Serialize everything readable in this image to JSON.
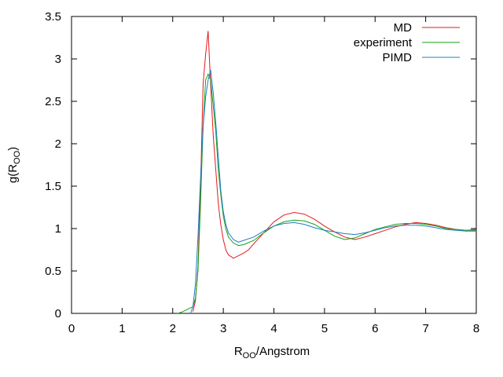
{
  "chart_data": {
    "type": "line",
    "title": "",
    "xlabel_main": "R",
    "xlabel_sub": "OO",
    "xlabel_rest": "/Angstrom",
    "ylabel_main": "g(R",
    "ylabel_sub": "OO",
    "ylabel_rest": ")",
    "xlim": [
      0,
      8
    ],
    "ylim": [
      0,
      3.5
    ],
    "xticks": [
      "0",
      "1",
      "2",
      "3",
      "4",
      "5",
      "6",
      "7",
      "8"
    ],
    "yticks": [
      "0",
      "0.5",
      "1",
      "1.5",
      "2",
      "2.5",
      "3",
      "3.5"
    ],
    "grid": false,
    "legend_position": "top-right",
    "series": [
      {
        "name": "MD",
        "color": "#e41a1c",
        "x": [
          2.4,
          2.45,
          2.5,
          2.55,
          2.6,
          2.65,
          2.7,
          2.75,
          2.8,
          2.85,
          2.9,
          2.95,
          3.0,
          3.05,
          3.1,
          3.15,
          3.2,
          3.3,
          3.4,
          3.5,
          3.6,
          3.8,
          4.0,
          4.2,
          4.4,
          4.6,
          4.8,
          5.0,
          5.2,
          5.4,
          5.6,
          5.8,
          6.0,
          6.2,
          6.4,
          6.6,
          6.8,
          7.0,
          7.2,
          7.4,
          7.6,
          7.8,
          8.0
        ],
        "y": [
          0.02,
          0.15,
          0.55,
          1.5,
          2.7,
          3.05,
          3.33,
          2.7,
          2.1,
          1.7,
          1.3,
          1.05,
          0.87,
          0.75,
          0.69,
          0.67,
          0.65,
          0.68,
          0.71,
          0.75,
          0.82,
          0.95,
          1.08,
          1.16,
          1.19,
          1.17,
          1.11,
          1.03,
          0.96,
          0.9,
          0.87,
          0.9,
          0.94,
          0.98,
          1.02,
          1.05,
          1.07,
          1.06,
          1.04,
          1.01,
          0.99,
          0.98,
          0.99
        ]
      },
      {
        "name": "experiment",
        "color": "#16a016",
        "x": [
          2.1,
          2.2,
          2.3,
          2.4,
          2.45,
          2.5,
          2.55,
          2.6,
          2.65,
          2.7,
          2.75,
          2.8,
          2.85,
          2.9,
          2.95,
          3.0,
          3.05,
          3.1,
          3.2,
          3.3,
          3.4,
          3.6,
          3.8,
          4.0,
          4.2,
          4.4,
          4.6,
          4.8,
          5.0,
          5.2,
          5.4,
          5.6,
          5.8,
          6.0,
          6.2,
          6.4,
          6.6,
          6.8,
          7.0,
          7.2,
          7.4,
          7.6,
          7.8,
          8.0
        ],
        "y": [
          0.0,
          0.02,
          0.05,
          0.08,
          0.18,
          0.5,
          1.3,
          2.2,
          2.75,
          2.82,
          2.75,
          2.45,
          2.15,
          1.7,
          1.4,
          1.15,
          1.0,
          0.9,
          0.83,
          0.8,
          0.81,
          0.86,
          0.95,
          1.03,
          1.08,
          1.1,
          1.09,
          1.05,
          0.98,
          0.91,
          0.87,
          0.89,
          0.94,
          0.99,
          1.02,
          1.05,
          1.06,
          1.06,
          1.05,
          1.03,
          1.0,
          0.99,
          0.98,
          0.98
        ]
      },
      {
        "name": "PIMD",
        "color": "#1a7fc1",
        "x": [
          2.35,
          2.4,
          2.45,
          2.5,
          2.55,
          2.6,
          2.65,
          2.7,
          2.75,
          2.8,
          2.85,
          2.9,
          2.95,
          3.0,
          3.05,
          3.1,
          3.2,
          3.3,
          3.4,
          3.6,
          3.8,
          4.0,
          4.2,
          4.4,
          4.6,
          4.8,
          5.0,
          5.2,
          5.4,
          5.6,
          5.8,
          6.0,
          6.2,
          6.4,
          6.6,
          6.8,
          7.0,
          7.2,
          7.4,
          7.6,
          7.8,
          8.0
        ],
        "y": [
          0.0,
          0.08,
          0.35,
          0.9,
          1.6,
          2.2,
          2.55,
          2.75,
          2.87,
          2.6,
          2.25,
          1.85,
          1.45,
          1.2,
          1.05,
          0.95,
          0.87,
          0.84,
          0.86,
          0.9,
          0.97,
          1.03,
          1.06,
          1.07,
          1.05,
          1.01,
          0.98,
          0.96,
          0.94,
          0.93,
          0.95,
          0.98,
          1.01,
          1.03,
          1.04,
          1.04,
          1.03,
          1.01,
          0.99,
          0.98,
          0.97,
          0.97
        ]
      }
    ]
  }
}
